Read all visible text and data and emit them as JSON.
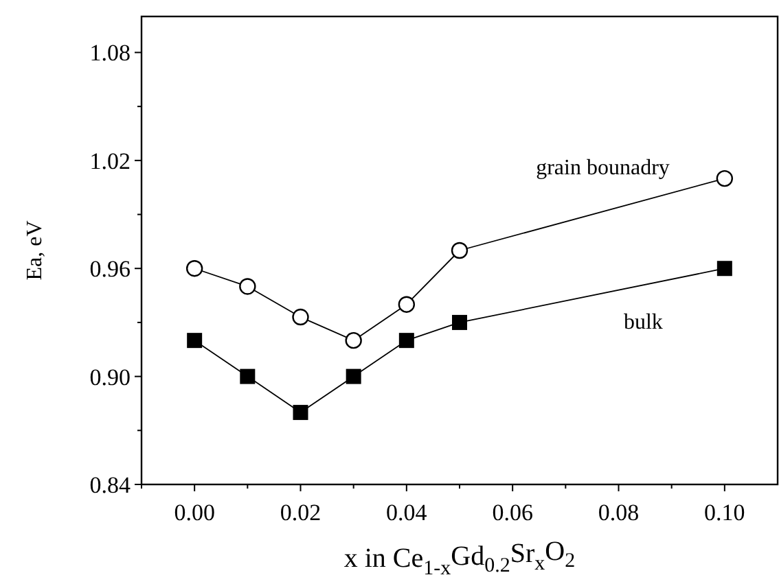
{
  "chart_data": {
    "type": "line",
    "xlabel": "x in Ce$_{1-x}$Gd$_{0.2}$Sr$_{x}$O$_{2}$",
    "ylabel": "Ea, eV",
    "xlim": [
      -0.01,
      0.11
    ],
    "ylim": [
      0.84,
      1.1
    ],
    "xticks": [
      {
        "value": -0.01,
        "label": null
      },
      {
        "value": 0,
        "label": "0.00"
      },
      {
        "value": 0.01,
        "label": null
      },
      {
        "value": 0.02,
        "label": "0.02"
      },
      {
        "value": 0.03,
        "label": null
      },
      {
        "value": 0.04,
        "label": "0.04"
      },
      {
        "value": 0.05,
        "label": null
      },
      {
        "value": 0.06,
        "label": "0.06"
      },
      {
        "value": 0.07,
        "label": null
      },
      {
        "value": 0.08,
        "label": "0.08"
      },
      {
        "value": 0.09,
        "label": null
      },
      {
        "value": 0.1,
        "label": "0.10"
      }
    ],
    "yticks": [
      0.84,
      {
        "value": 0.87,
        "label": null
      },
      {
        "value": 0.9,
        "label": "0.90"
      },
      {
        "value": 0.93,
        "label": null
      },
      0.96,
      {
        "value": 0.99,
        "label": null
      },
      1.02,
      {
        "value": 1.05,
        "label": null
      },
      1.08
    ],
    "x": [
      0,
      0.01,
      0.02,
      0.03,
      0.04,
      0.05,
      0.1
    ],
    "series": [
      {
        "name": "grain bounadry",
        "color": "#000000",
        "marker": "circle",
        "values": [
          0.96,
          0.95,
          0.933,
          0.92,
          0.94,
          0.97,
          1.01
        ]
      },
      {
        "name": "bulk",
        "color": "#000000",
        "marker": "square",
        "values": [
          0.92,
          0.9,
          0.88,
          0.9,
          0.92,
          0.93,
          0.96
        ]
      }
    ],
    "grid": false,
    "line_style": "solid"
  }
}
